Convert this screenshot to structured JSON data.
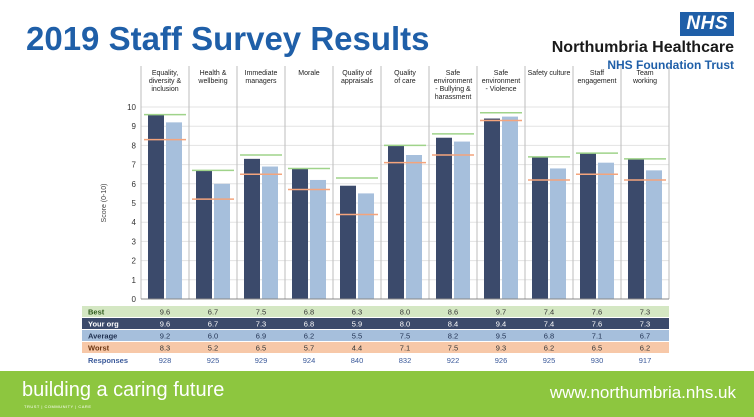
{
  "header": {
    "title": "2019 Staff Survey Results",
    "logo_text": "NHS",
    "trust_name": "Northumbria Healthcare",
    "trust_subtitle": "NHS Foundation Trust"
  },
  "footer": {
    "tagline": "building a caring future",
    "tagline_sub": "TRUST | COMMUNITY | CARE",
    "website": "www.northumbria.nhs.uk"
  },
  "colors": {
    "your_org": "#3b4a6b",
    "average": "#a6bfdc",
    "best_line": "#9fd38a",
    "worst_line": "#f4a47c",
    "best_row": "#d4e7c3",
    "your_org_row": "#3b4a6b",
    "average_row": "#a6bfdc",
    "worst_row": "#f7c8a8",
    "footer_green": "#8dc63f"
  },
  "chart_data": {
    "type": "bar",
    "ylabel": "Score (0-10)",
    "ylim": [
      0,
      10
    ],
    "yticks": [
      0,
      1,
      2,
      3,
      4,
      5,
      6,
      7,
      8,
      9,
      10
    ],
    "grid": true,
    "categories": [
      [
        "Equality,",
        "diversity &",
        "inclusion"
      ],
      [
        "Health &",
        "wellbeing"
      ],
      [
        "Immediate",
        "managers"
      ],
      [
        "Morale"
      ],
      [
        "Quality of",
        "appraisals"
      ],
      [
        "Quality",
        "of care"
      ],
      [
        "Safe",
        "environment",
        "- Bullying &",
        "harassment"
      ],
      [
        "Safe",
        "environment",
        "- Violence"
      ],
      [
        "Safety culture"
      ],
      [
        "Staff",
        "engagement"
      ],
      [
        "Team",
        "working"
      ]
    ],
    "series": [
      {
        "name": "Best",
        "values": [
          9.6,
          6.7,
          7.5,
          6.8,
          6.3,
          8.0,
          8.6,
          9.7,
          7.4,
          7.6,
          7.3
        ]
      },
      {
        "name": "Your org",
        "values": [
          9.6,
          6.7,
          7.3,
          6.8,
          5.9,
          8.0,
          8.4,
          9.4,
          7.4,
          7.6,
          7.3
        ]
      },
      {
        "name": "Average",
        "values": [
          9.2,
          6.0,
          6.9,
          6.2,
          5.5,
          7.5,
          8.2,
          9.5,
          6.8,
          7.1,
          6.7
        ]
      },
      {
        "name": "Worst",
        "values": [
          8.3,
          5.2,
          6.5,
          5.7,
          4.4,
          7.1,
          7.5,
          9.3,
          6.2,
          6.5,
          6.2
        ]
      }
    ],
    "table_rows": [
      {
        "label": "Best",
        "values": [
          "9.6",
          "6.7",
          "7.5",
          "6.8",
          "6.3",
          "8.0",
          "8.6",
          "9.7",
          "7.4",
          "7.6",
          "7.3"
        ]
      },
      {
        "label": "Your org",
        "values": [
          "9.6",
          "6.7",
          "7.3",
          "6.8",
          "5.9",
          "8.0",
          "8.4",
          "9.4",
          "7.4",
          "7.6",
          "7.3"
        ]
      },
      {
        "label": "Average",
        "values": [
          "9.2",
          "6.0",
          "6.9",
          "6.2",
          "5.5",
          "7.5",
          "8.2",
          "9.5",
          "6.8",
          "7.1",
          "6.7"
        ]
      },
      {
        "label": "Worst",
        "values": [
          "8.3",
          "5.2",
          "6.5",
          "5.7",
          "4.4",
          "7.1",
          "7.5",
          "9.3",
          "6.2",
          "6.5",
          "6.2"
        ]
      }
    ],
    "responses": {
      "label": "Responses",
      "values": [
        "928",
        "925",
        "929",
        "924",
        "840",
        "832",
        "922",
        "926",
        "925",
        "930",
        "917"
      ]
    }
  }
}
